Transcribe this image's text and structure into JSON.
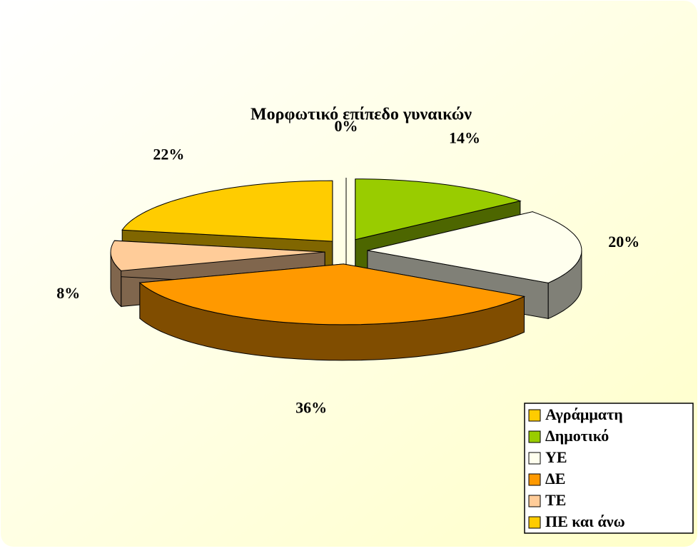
{
  "chart_data": {
    "type": "pie3d",
    "title": "Μορφωτικό επίπεδο γυναικών",
    "categories": [
      "Αγράμματη",
      "Δημοτικό",
      "ΥΕ",
      "ΔΕ",
      "ΤΕ",
      "ΠΕ και άνω"
    ],
    "values": [
      0,
      14,
      20,
      36,
      8,
      22
    ],
    "value_labels": [
      "0%",
      "14%",
      "20%",
      "36%",
      "8%",
      "22%"
    ],
    "colors": [
      "#ffcc00",
      "#99cc00",
      "#ffffee",
      "#ff9900",
      "#ffcc99",
      "#ffcc00"
    ],
    "legend": "bottom-right"
  }
}
